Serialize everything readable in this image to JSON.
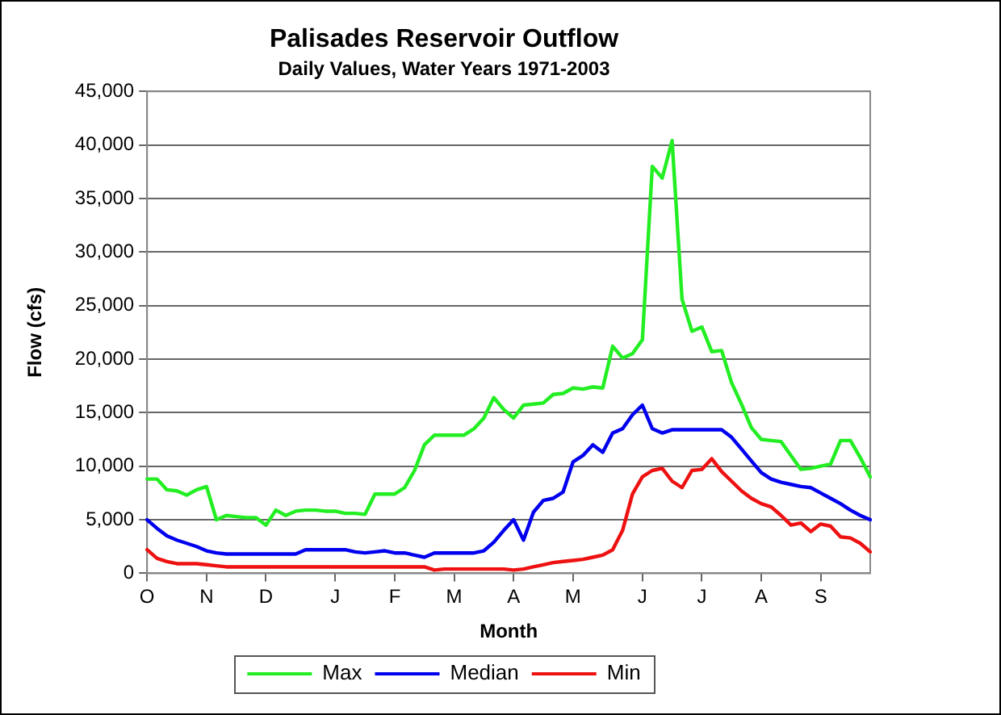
{
  "chart_data": {
    "type": "line",
    "title": "Palisades Reservoir Outflow",
    "subtitle": "Daily Values, Water Years 1971-2003",
    "xlabel": "Month",
    "ylabel": "Flow (cfs)",
    "categories": [
      "O",
      null,
      null,
      null,
      null,
      null,
      "N",
      null,
      null,
      null,
      null,
      null,
      "D",
      null,
      null,
      null,
      null,
      null,
      null,
      "J",
      null,
      null,
      null,
      null,
      null,
      "F",
      null,
      null,
      null,
      null,
      null,
      "M",
      null,
      null,
      null,
      null,
      null,
      "A",
      null,
      null,
      null,
      null,
      null,
      "M",
      null,
      null,
      null,
      null,
      null,
      null,
      "J",
      null,
      null,
      null,
      null,
      null,
      "J",
      null,
      null,
      null,
      null,
      null,
      "A",
      null,
      null,
      null,
      null,
      null,
      "S",
      null,
      null,
      null,
      null,
      null
    ],
    "ylim": [
      0,
      45000
    ],
    "yticks": [
      {
        "value": 0,
        "label": "0"
      },
      {
        "value": 5000,
        "label": "5,000"
      },
      {
        "value": 10000,
        "label": "10,000"
      },
      {
        "value": 15000,
        "label": "15,000"
      },
      {
        "value": 20000,
        "label": "20,000"
      },
      {
        "value": 25000,
        "label": "25,000"
      },
      {
        "value": 30000,
        "label": "30,000"
      },
      {
        "value": 35000,
        "label": "35,000"
      },
      {
        "value": 40000,
        "label": "40,000"
      },
      {
        "value": 45000,
        "label": "45,000"
      }
    ],
    "grid": "y",
    "legend": "bottom",
    "marker": "none",
    "line_style": "solid",
    "series": [
      {
        "name": "Max",
        "color": "#22ee22",
        "values": [
          8800,
          8800,
          7800,
          7700,
          7300,
          7800,
          8100,
          5000,
          5400,
          5300,
          5200,
          5200,
          4500,
          5900,
          5400,
          5800,
          5900,
          5900,
          5800,
          5800,
          5600,
          5600,
          5500,
          7400,
          7400,
          7400,
          8000,
          9600,
          12000,
          12900,
          12900,
          12900,
          12900,
          13500,
          14500,
          16400,
          15300,
          14500,
          15700,
          15800,
          15900,
          16700,
          16800,
          17300,
          17200,
          17400,
          17300,
          21200,
          20100,
          20500,
          21800,
          38000,
          36900,
          40400,
          25600,
          22600,
          23000,
          20700,
          20800,
          17800,
          15800,
          13600,
          12500,
          12400,
          12300,
          11000,
          9700,
          9800,
          10000,
          10200,
          12400,
          12400,
          10800,
          9000
        ]
      },
      {
        "name": "Median",
        "color": "#0000ee",
        "values": [
          5000,
          4200,
          3500,
          3100,
          2800,
          2500,
          2100,
          1900,
          1800,
          1800,
          1800,
          1800,
          1800,
          1800,
          1800,
          1800,
          2200,
          2200,
          2200,
          2200,
          2200,
          2000,
          1900,
          2000,
          2100,
          1900,
          1900,
          1700,
          1500,
          1900,
          1900,
          1900,
          1900,
          1900,
          2100,
          2900,
          4000,
          5000,
          3100,
          5700,
          6800,
          7000,
          7600,
          10400,
          11000,
          12000,
          11300,
          13100,
          13500,
          14800,
          15700,
          13500,
          13100,
          13400,
          13400,
          13400,
          13400,
          13400,
          13400,
          12700,
          11600,
          10500,
          9400,
          8800,
          8500,
          8300,
          8100,
          8000,
          7500,
          7000,
          6500,
          5900,
          5400,
          5000
        ]
      },
      {
        "name": "Min",
        "color": "#ee1111",
        "values": [
          2200,
          1400,
          1100,
          900,
          900,
          900,
          800,
          700,
          600,
          600,
          600,
          600,
          600,
          600,
          600,
          600,
          600,
          600,
          600,
          600,
          600,
          600,
          600,
          600,
          600,
          600,
          600,
          600,
          600,
          300,
          400,
          400,
          400,
          400,
          400,
          400,
          400,
          300,
          400,
          600,
          800,
          1000,
          1100,
          1200,
          1300,
          1500,
          1700,
          2200,
          4000,
          7400,
          9000,
          9600,
          9800,
          8600,
          8000,
          9600,
          9700,
          10700,
          9500,
          8600,
          7700,
          7000,
          6500,
          6200,
          5400,
          4500,
          4700,
          3900,
          4600,
          4400,
          3400,
          3300,
          2800,
          2000
        ]
      }
    ]
  }
}
